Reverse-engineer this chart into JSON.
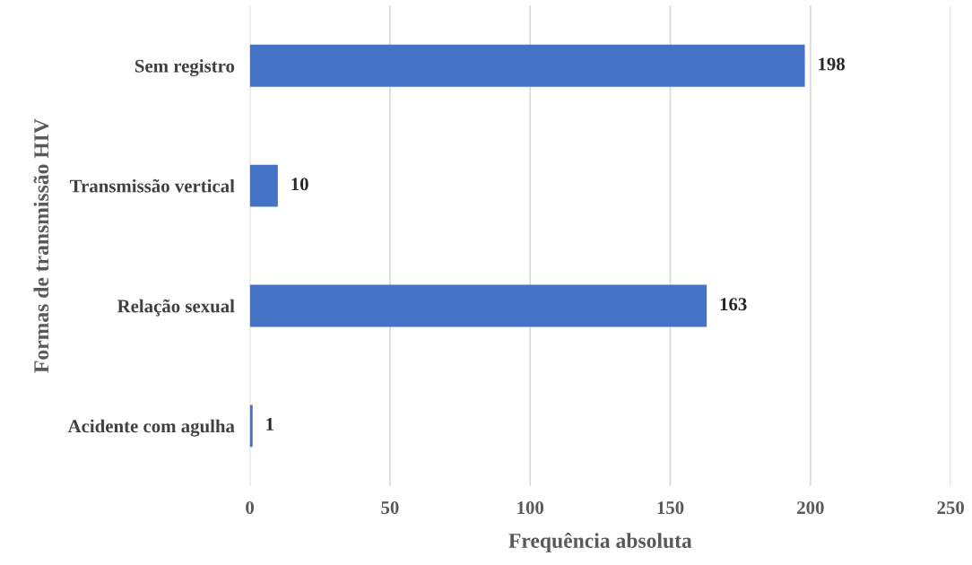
{
  "chart_data": {
    "type": "bar",
    "orientation": "horizontal",
    "ylabel": "Formas de transmissão HIV",
    "xlabel": "Frequência absoluta",
    "categories": [
      "Sem registro",
      "Transmissão vertical",
      "Relação sexual",
      "Acidente com agulha"
    ],
    "values": [
      198,
      10,
      163,
      1
    ],
    "color": "#4472c4",
    "xlim": [
      0,
      250
    ],
    "xticks": [
      0,
      50,
      100,
      150,
      200,
      250
    ],
    "grid": "x",
    "data_labels": true
  }
}
